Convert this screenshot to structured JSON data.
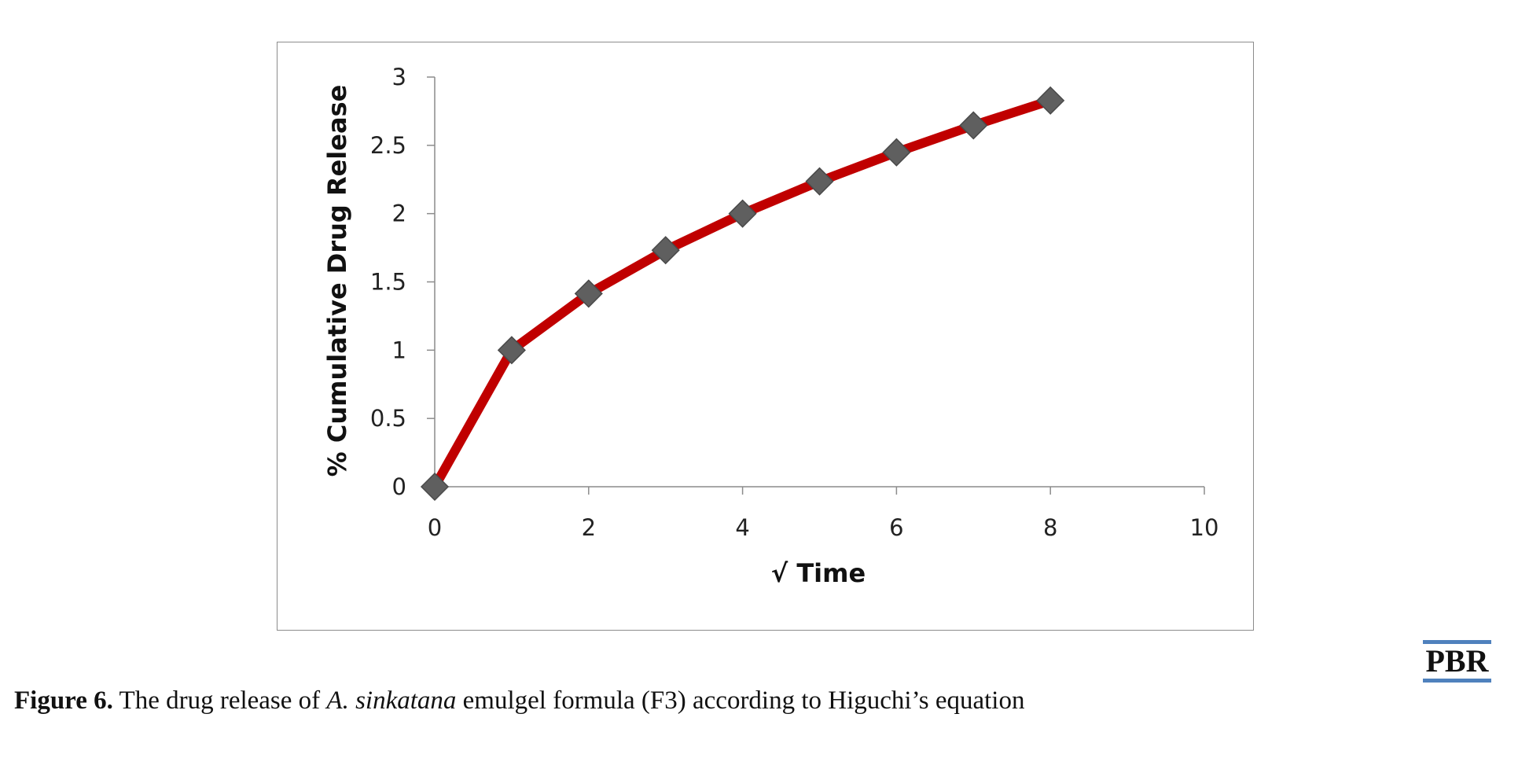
{
  "chart_data": {
    "type": "line",
    "title": "",
    "xlabel": "√ Time",
    "ylabel": "% Cumulative Drug Release",
    "xlim": [
      0,
      10
    ],
    "ylim": [
      0,
      3
    ],
    "x_ticks": [
      "0",
      "2",
      "4",
      "6",
      "8",
      "10"
    ],
    "y_ticks": [
      "0",
      "0.5",
      "1",
      "1.5",
      "2",
      "2.5",
      "3"
    ],
    "grid": false,
    "legend": "none",
    "series": [
      {
        "x": [
          0,
          1,
          2,
          3,
          4,
          5,
          6,
          7,
          8
        ],
        "y": [
          0,
          1,
          1.414,
          1.732,
          2,
          2.236,
          2.449,
          2.646,
          2.828
        ],
        "line_color": "#c00000",
        "marker": "diamond",
        "marker_color": "#5f5f5f"
      }
    ]
  },
  "caption": {
    "label": "Figure 6.",
    "text_before": " The drug release of ",
    "species": "A. sinkatana",
    "text_after": " emulgel formula (F3) according to Higuchi’s equation"
  },
  "logo": {
    "text": "PBR",
    "color": "#4f81bd"
  }
}
